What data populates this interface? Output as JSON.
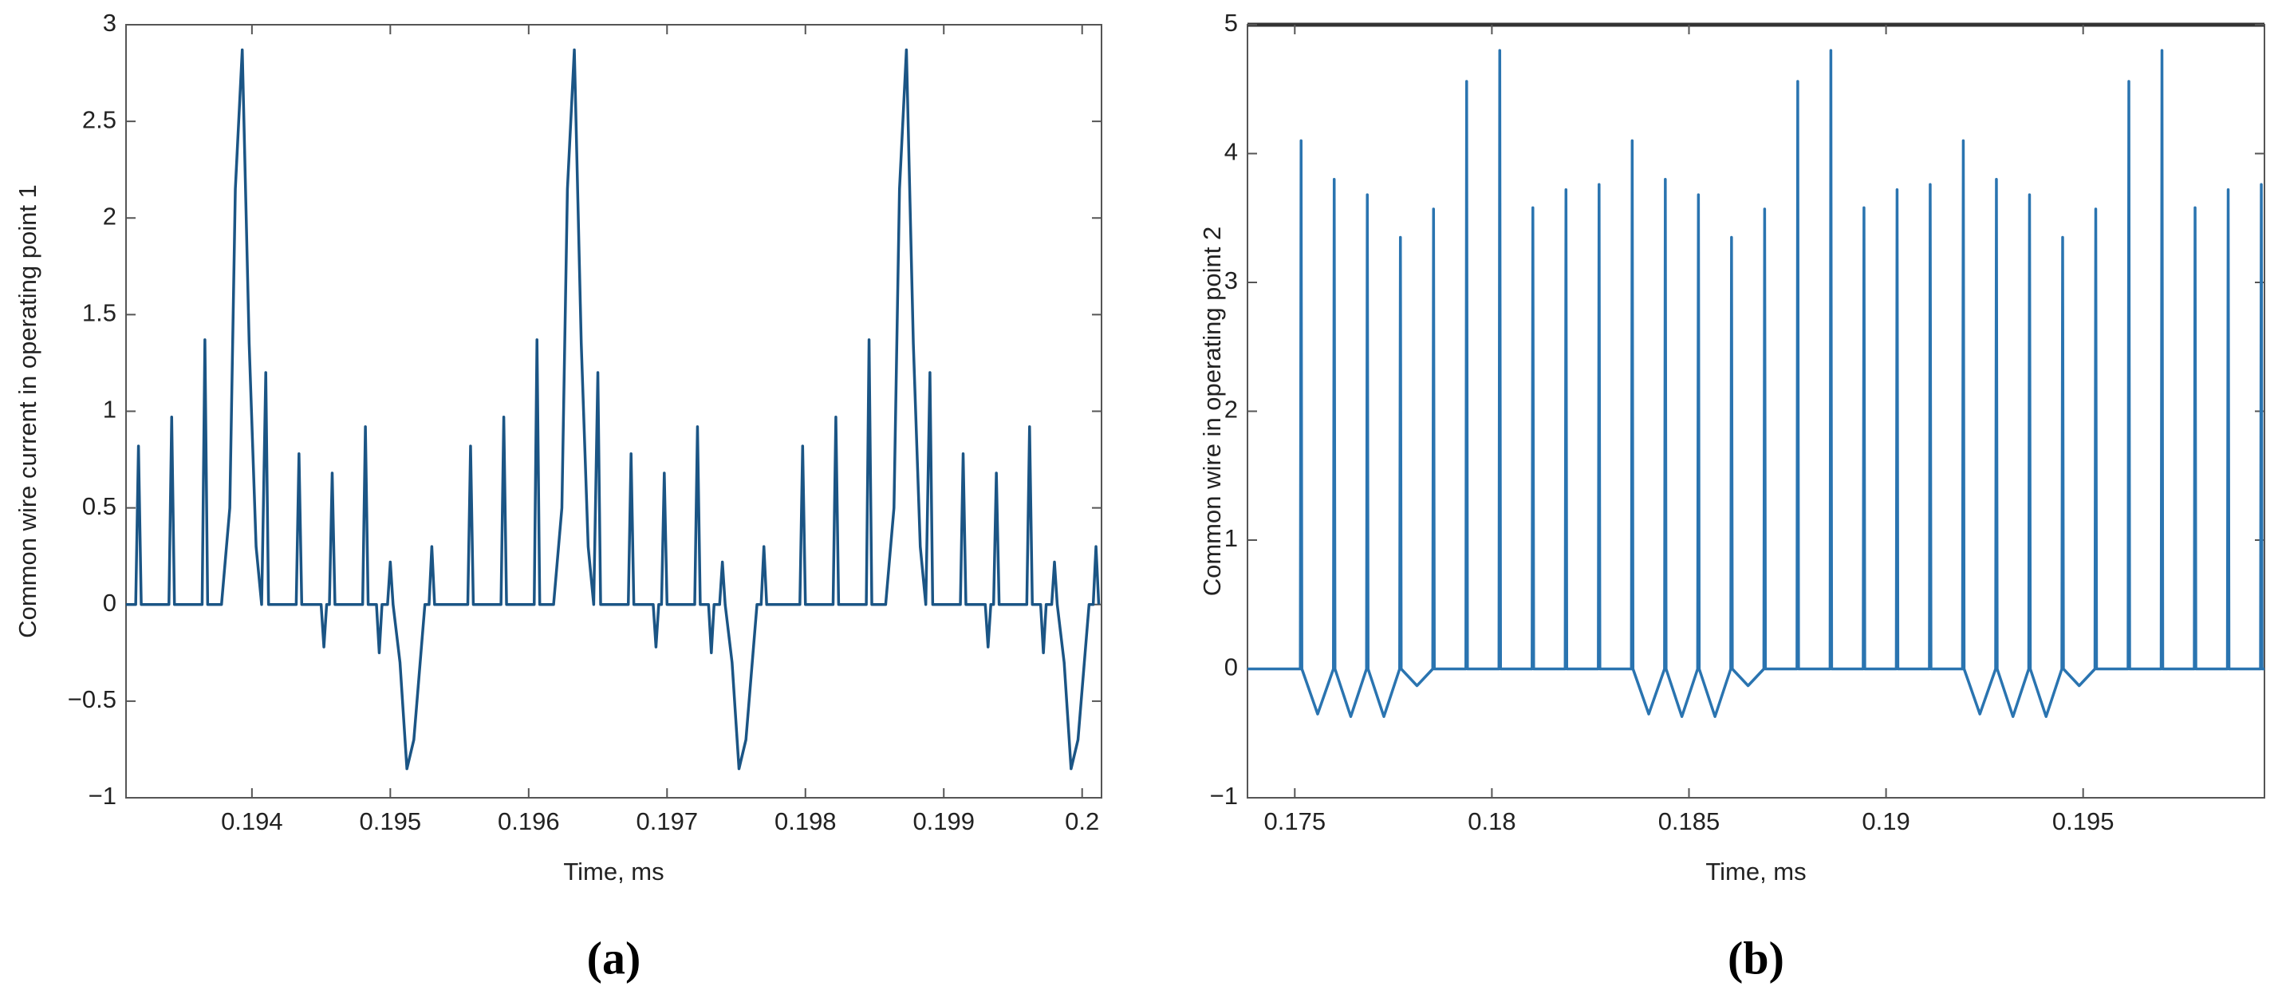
{
  "chart_data": [
    {
      "type": "line",
      "ylabel": "Common wire current in operating point 1",
      "xlabel": "Time, ms",
      "caption": "(a)",
      "color": "#1b5585",
      "xlim": [
        0.19309,
        0.20014
      ],
      "xticks": [
        0.194,
        0.195,
        0.196,
        0.197,
        0.198,
        0.199,
        0.2
      ],
      "ylim": [
        -1,
        3
      ],
      "yticks": [
        {
          "value": -1,
          "label": "−1"
        },
        {
          "value": -0.5,
          "label": "−0.5"
        },
        0,
        0.5,
        1,
        1.5,
        2,
        2.5,
        3
      ],
      "x": [
        0.19309,
        0.19316,
        0.19318,
        0.1932,
        0.1934,
        0.19342,
        0.19344,
        0.19364,
        0.19366,
        0.19368,
        0.19378,
        0.19384,
        0.19388,
        0.19393,
        0.19398,
        0.19403,
        0.19407,
        0.1941,
        0.19412,
        0.19432,
        0.19434,
        0.19436,
        0.1945,
        0.19452,
        0.19454,
        0.19456,
        0.19458,
        0.1946,
        0.1948,
        0.19482,
        0.19484,
        0.1949,
        0.19492,
        0.19494,
        0.19498,
        0.195,
        0.19502,
        0.19507,
        0.19512,
        0.19517,
        0.19525,
        0.19528,
        0.1953,
        0.19532,
        0.19549,
        0.19556,
        0.19558,
        0.1956,
        0.1958,
        0.19582,
        0.19584,
        0.19604,
        0.19606,
        0.19608,
        0.19618,
        0.19624,
        0.19628,
        0.19633,
        0.19638,
        0.19643,
        0.19647,
        0.1965,
        0.19652,
        0.19672,
        0.19674,
        0.19676,
        0.1969,
        0.19692,
        0.19694,
        0.19696,
        0.19698,
        0.197,
        0.1972,
        0.19722,
        0.19724,
        0.1973,
        0.19732,
        0.19734,
        0.19738,
        0.1974,
        0.19742,
        0.19747,
        0.19752,
        0.19757,
        0.19765,
        0.19768,
        0.1977,
        0.19772,
        0.19789,
        0.19796,
        0.19798,
        0.198,
        0.1982,
        0.19822,
        0.19824,
        0.19844,
        0.19846,
        0.19848,
        0.19858,
        0.19864,
        0.19868,
        0.19873,
        0.19878,
        0.19883,
        0.19887,
        0.1989,
        0.19892,
        0.19912,
        0.19914,
        0.19916,
        0.1993,
        0.19932,
        0.19934,
        0.19936,
        0.19938,
        0.1994,
        0.1996,
        0.19962,
        0.19964,
        0.1997,
        0.19972,
        0.19974,
        0.19978,
        0.1998,
        0.19982,
        0.19987,
        0.19992,
        0.19997,
        0.20005,
        0.20008,
        0.2001,
        0.20012
      ],
      "values": [
        0,
        0,
        0.82,
        0,
        0,
        0.97,
        0,
        0,
        1.37,
        0,
        0,
        0.5,
        2.15,
        2.87,
        1.35,
        0.3,
        0,
        1.2,
        0,
        0,
        0.78,
        0,
        0,
        -0.22,
        0,
        0,
        0.68,
        0,
        0,
        0.92,
        0,
        0,
        -0.25,
        0,
        0,
        0.22,
        0,
        -0.3,
        -0.85,
        -0.7,
        0,
        0,
        0.3,
        0,
        0,
        0,
        0.82,
        0,
        0,
        0.97,
        0,
        0,
        1.37,
        0,
        0,
        0.5,
        2.15,
        2.87,
        1.35,
        0.3,
        0,
        1.2,
        0,
        0,
        0.78,
        0,
        0,
        -0.22,
        0,
        0,
        0.68,
        0,
        0,
        0.92,
        0,
        0,
        -0.25,
        0,
        0,
        0.22,
        0,
        -0.3,
        -0.85,
        -0.7,
        0,
        0,
        0.3,
        0,
        0,
        0,
        0.82,
        0,
        0,
        0.97,
        0,
        0,
        1.37,
        0,
        0,
        0.5,
        2.15,
        2.87,
        1.35,
        0.3,
        0,
        1.2,
        0,
        0,
        0.78,
        0,
        0,
        -0.22,
        0,
        0,
        0.68,
        0,
        0,
        0.92,
        0,
        0,
        -0.25,
        0,
        0,
        0.22,
        0,
        -0.3,
        -0.85,
        -0.7,
        0,
        0,
        0.3,
        0
      ]
    },
    {
      "type": "line",
      "ylabel": "Common wire in operating point 2",
      "xlabel": "Time, ms",
      "caption": "(b)",
      "color": "#2a74b0",
      "xlim": [
        0.1738,
        0.1996
      ],
      "xticks": [
        0.175,
        0.18,
        0.185,
        0.19,
        0.195
      ],
      "ylim": [
        -1,
        5
      ],
      "yticks": [
        {
          "value": -1,
          "label": "−1"
        },
        0,
        1,
        2,
        3,
        4,
        5
      ],
      "x": [
        0.1738,
        0.17514,
        0.17516,
        0.17518,
        0.17558,
        0.17598,
        0.176,
        0.17602,
        0.17642,
        0.17682,
        0.17684,
        0.17686,
        0.17726,
        0.17766,
        0.17768,
        0.1777,
        0.1781,
        0.1785,
        0.17852,
        0.17854,
        0.17934,
        0.17936,
        0.17938,
        0.18018,
        0.1802,
        0.18022,
        0.18102,
        0.18104,
        0.18106,
        0.18186,
        0.18188,
        0.1819,
        0.1827,
        0.18272,
        0.18274,
        0.18354,
        0.18356,
        0.18358,
        0.18398,
        0.18438,
        0.1844,
        0.18442,
        0.18482,
        0.18522,
        0.18524,
        0.18526,
        0.18566,
        0.18606,
        0.18608,
        0.1861,
        0.1865,
        0.1869,
        0.18692,
        0.18694,
        0.18774,
        0.18776,
        0.18778,
        0.18858,
        0.1886,
        0.18862,
        0.18942,
        0.18944,
        0.18946,
        0.19026,
        0.19028,
        0.1903,
        0.1911,
        0.19112,
        0.19114,
        0.19194,
        0.19196,
        0.19198,
        0.19238,
        0.19278,
        0.1928,
        0.19282,
        0.19322,
        0.19362,
        0.19364,
        0.19366,
        0.19406,
        0.19446,
        0.19448,
        0.1945,
        0.1949,
        0.1953,
        0.19532,
        0.19534,
        0.19614,
        0.19616,
        0.19618,
        0.19698,
        0.197,
        0.19702,
        0.19782,
        0.19784,
        0.19786,
        0.19866,
        0.19868,
        0.1987,
        0.1995,
        0.19952,
        0.19954,
        0.1996
      ],
      "values": [
        0,
        0,
        4.1,
        0,
        -0.35,
        0,
        3.8,
        0,
        -0.37,
        0,
        3.68,
        0,
        -0.37,
        0,
        3.35,
        0,
        -0.13,
        0,
        3.57,
        0,
        0,
        4.56,
        0,
        0,
        4.8,
        0,
        0,
        3.58,
        0,
        0,
        3.72,
        0,
        0,
        3.76,
        0,
        0,
        4.1,
        0,
        -0.35,
        0,
        3.8,
        0,
        -0.37,
        0,
        3.68,
        0,
        -0.37,
        0,
        3.35,
        0,
        -0.13,
        0,
        3.57,
        0,
        0,
        4.56,
        0,
        0,
        4.8,
        0,
        0,
        3.58,
        0,
        0,
        3.72,
        0,
        0,
        3.76,
        0,
        0,
        4.1,
        0,
        -0.35,
        0,
        3.8,
        0,
        -0.37,
        0,
        3.68,
        0,
        -0.37,
        0,
        3.35,
        0,
        -0.13,
        0,
        3.57,
        0,
        0,
        4.56,
        0,
        0,
        4.8,
        0,
        0,
        3.58,
        0,
        0,
        3.72,
        0,
        0,
        3.76,
        0,
        0
      ]
    }
  ]
}
